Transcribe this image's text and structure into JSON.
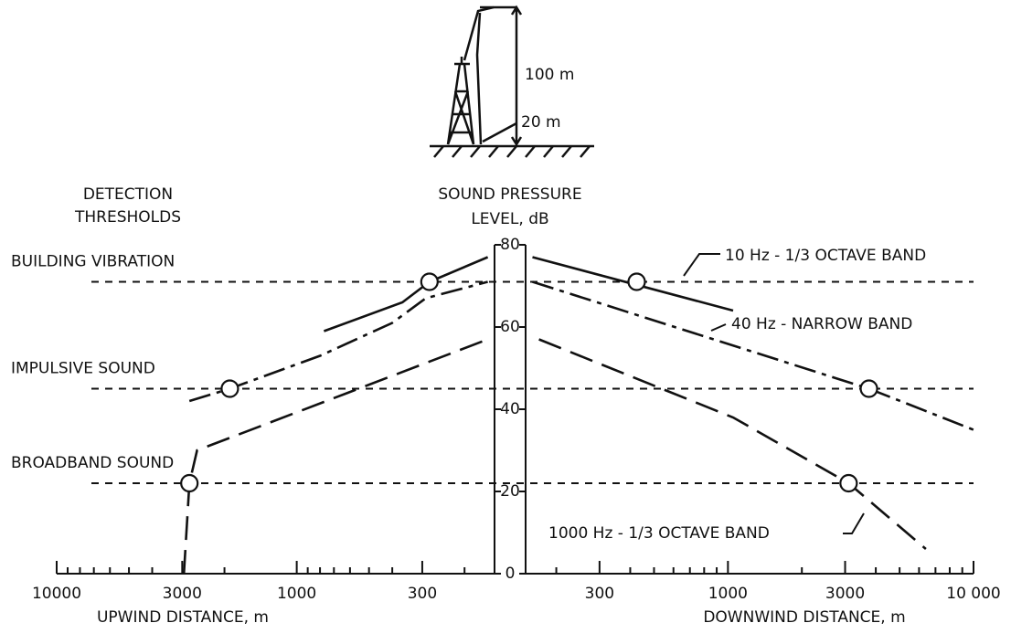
{
  "chart_data": {
    "type": "line",
    "figure": {
      "height_label": "100 m",
      "hub_label": "20 m"
    },
    "threshold_title": [
      "DETECTION",
      "THRESHOLDS"
    ],
    "ylabel": [
      "SOUND PRESSURE",
      "LEVEL, dB"
    ],
    "ylim": [
      0,
      80
    ],
    "yticks": [
      0,
      20,
      40,
      60,
      80
    ],
    "xlim": [
      150,
      10000
    ],
    "upwind": {
      "xlabel": "UPWIND DISTANCE, m",
      "xticks": [
        300,
        1000,
        3000,
        10000
      ]
    },
    "downwind": {
      "xlabel": "DOWNWIND DISTANCE, m",
      "xticks": [
        300,
        1000,
        3000,
        {
          "value": 10000,
          "label": "10 000"
        }
      ]
    },
    "minor_xticks": [
      200,
      400,
      500,
      600,
      700,
      800,
      900,
      2000,
      4000,
      5000,
      6000,
      7000,
      8000,
      9000
    ],
    "thresholds": [
      {
        "name": "BUILDING VIBRATION",
        "value": 71
      },
      {
        "name": "IMPULSIVE SOUND",
        "value": 45
      },
      {
        "name": "BROADBAND SOUND",
        "value": 22
      }
    ],
    "series": [
      {
        "name": "10 Hz - 1/3 OCTAVE BAND",
        "color": "#111111",
        "dash": "solid",
        "upwind": {
          "x": [
            770,
            363,
            280,
            160
          ],
          "values": [
            59,
            66,
            71,
            77
          ]
        },
        "downwind": {
          "x": [
            160,
            1050
          ],
          "values": [
            77,
            64
          ]
        },
        "markers": [
          {
            "side": "upwind",
            "x": 280,
            "value": 71
          },
          {
            "side": "downwind",
            "x": 425,
            "value": 71
          }
        ]
      },
      {
        "name": "40 Hz - NARROW BAND",
        "color": "#111111",
        "dash": "dash-dot",
        "upwind": {
          "x": [
            2800,
            1900,
            800,
            400,
            290,
            160
          ],
          "values": [
            42,
            45,
            53,
            61,
            67,
            71
          ]
        },
        "downwind": {
          "x": [
            160,
            3750,
            10000
          ],
          "values": [
            71,
            45,
            35
          ]
        },
        "markers": [
          {
            "side": "upwind",
            "x": 1900,
            "value": 45
          },
          {
            "side": "downwind",
            "x": 3750,
            "value": 45
          }
        ]
      },
      {
        "name": "1000 Hz - 1/3 OCTAVE BAND",
        "color": "#111111",
        "dash": "dash",
        "upwind": {
          "x": [
            2950,
            2800,
            2600,
            160
          ],
          "values": [
            0,
            22,
            30,
            57
          ]
        },
        "downwind": {
          "x": [
            170,
            1050,
            3100,
            6400
          ],
          "values": [
            57,
            38,
            22,
            6
          ]
        },
        "markers": [
          {
            "side": "upwind",
            "x": 2800,
            "value": 22
          },
          {
            "side": "downwind",
            "x": 3100,
            "value": 22
          }
        ]
      }
    ]
  }
}
